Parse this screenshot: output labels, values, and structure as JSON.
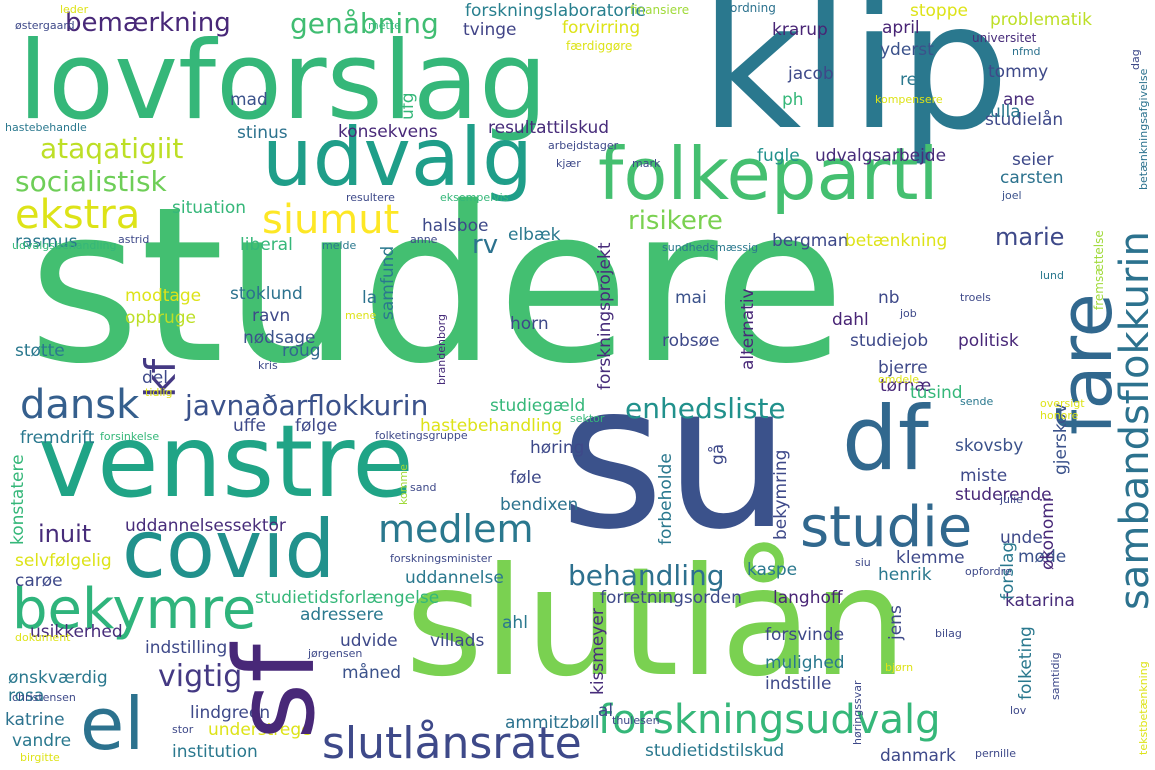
{
  "words": {
    "studere": "studere",
    "su": "su",
    "slutlan": "slutlån",
    "klip": "klip",
    "lovforslag": "lovforslag",
    "venstre": "venstre",
    "covid": "covid",
    "sf": "sf",
    "udvalg": "udvalg",
    "folkeparti": "folkeparti",
    "df": "df",
    "fare": "fare",
    "bekymre": "bekymre",
    "el": "el",
    "studie": "studie",
    "samfundsflokkurin": "sambandsflokkurin",
    "forskningsudvalg": "forskningsudvalg",
    "slutlansrate": "slutlånsrate",
    "dansk": "dansk",
    "medlem": "medlem",
    "ekstra": "ekstra",
    "socialistisk": "socialistisk",
    "siumut": "siumut",
    "ataqatigiit": "ataqatigiit",
    "genabning": "genåbning",
    "bemaerkning": "bemærkning",
    "javnadarflokkurin": "javnaðarflokkurin",
    "enhedsliste": "enhedsliste",
    "kf": "kf",
    "behandling": "behandling",
    "vigtig": "vigtig",
    "inuit": "inuit",
    "marie": "marie",
    "rv": "rv",
    "risikere": "risikere",
    "forskningslaboratorie": "forskningslaboratorie",
    "forvirring": "forvirring",
    "tvinge": "tvinge",
    "fardiggore": "færdiggøre",
    "finansiere": "finansiere",
    "ordning": "ordning",
    "april": "april",
    "stoppe": "stoppe",
    "problematik": "problematik",
    "universitet": "universitet",
    "nfmd": "nfmd",
    "krarup": "krarup",
    "yderst": "yderst",
    "jacob": "jacob",
    "tommy": "tommy",
    "ret": "ret",
    "ane": "ane",
    "ph": "ph",
    "studielan": "studielån",
    "ulla": "ulla",
    "resultattilskud": "resultattilskud",
    "konsekvens": "konsekvens",
    "stinus": "stinus",
    "mad": "mad",
    "ufg": "ufg",
    "fugle": "fugle",
    "udvalgsarbejde": "udvalgsarbejde",
    "seier": "seier",
    "carsten": "carsten",
    "joel": "joel",
    "situation": "situation",
    "rasmus": "rasmus",
    "halsboe": "halsboe",
    "elbaek": "elbæk",
    "liberal": "liberal",
    "bergman": "bergman",
    "betaenkning": "betænkning",
    "modtage": "modtage",
    "opbruge": "opbruge",
    "stoklund": "stoklund",
    "ravn": "ravn",
    "la": "la",
    "samfund": "samfund",
    "mai": "mai",
    "nb": "nb",
    "dahl": "dahl",
    "horn": "horn",
    "robsoe": "robsøe",
    "politisk": "politisk",
    "studiejob": "studiejob",
    "nodsage": "nødsage",
    "roug": "roug",
    "stotte": "støtte",
    "del": "del",
    "bjerre": "bjerre",
    "tornae": "tørnæ",
    "tusind": "tusind",
    "studiegaeld": "studiegæld",
    "hastebehandling": "hastebehandling",
    "uffe": "uffe",
    "folge": "følge",
    "fremdrift": "fremdrift",
    "horing": "høring",
    "skovsby": "skovsby",
    "gjerskov": "gjerskov",
    "miste": "miste",
    "studerende": "studerende",
    "bendixen": "bendixen",
    "fole": "føle",
    "ga": "gå",
    "bekymring": "bekymring",
    "forbeholde": "forbeholde",
    "konstatere": "konstatere",
    "uddannelsessektor": "uddannelsessektor",
    "uddannelse": "uddannelse",
    "selvfolgelig": "selvfølgelig",
    "caroe": "carøe",
    "studietidsforlaengelse": "studietidsforlængelse",
    "kaspe": "kaspe",
    "henrik": "henrik",
    "forslag": "forslag",
    "okonomi": "økonomi",
    "unde": "unde",
    "mode": "møde",
    "klemme": "klemme",
    "katarina": "katarina",
    "forretningsorden": "forretningsorden",
    "langhoff": "langhoff",
    "adressere": "adressere",
    "ahl": "ahl",
    "usikkerhed": "usikkerhed",
    "indstilling": "indstilling",
    "udvide": "udvide",
    "villads": "villads",
    "forsvinde": "forsvinde",
    "mulighed": "mulighed",
    "jens": "jens",
    "folketing": "folketing",
    "onskvaerdig": "ønskværdig",
    "rosa": "rosa",
    "maned": "måned",
    "indstille": "indstille",
    "kissmeyer": "kissmeyer",
    "katrine": "katrine",
    "lindgreen": "lindgreen",
    "understrege": "understrege",
    "ammitzboll": "ammitzbøll",
    "al": "al",
    "vandre": "vandre",
    "institution": "institution",
    "studietidstilskud": "studietidstilskud",
    "danmark": "danmark",
    "forskningsprojekt": "forskningsprojekt",
    "alternativ": "alternativ",
    "leder": "leder",
    "ostergaard": "østergaard",
    "mette": "mette",
    "hastebehandle": "hastebehandle",
    "arbejdstager": "arbejdstager",
    "eksempelvis": "eksempelvis",
    "resultere": "resultere",
    "udvalgsbehandling": "udvalgsbehandling",
    "astrid": "astrid",
    "melde": "melde",
    "anne": "anne",
    "kjaer": "kjær",
    "mark": "mark",
    "sundhedsmaessig": "sundhedsmæssig",
    "kompensere": "kompensere",
    "lund": "lund",
    "troels": "troels",
    "fremsaettelse": "fremsættelse",
    "betaenkningsafgivelse": "betænkningsafgivelse",
    "dag": "dag",
    "mene": "mene",
    "job": "job",
    "kris": "kris",
    "tidlig": "tidlig",
    "brandenborg": "brandenborg",
    "omdele": "omdele",
    "sende": "sende",
    "oversigt": "oversigt",
    "honore": "honore",
    "forsinkelse": "forsinkelse",
    "folketingsgruppe": "folketingsgruppe",
    "sektor": "sektor",
    "sand": "sand",
    "komme": "komme",
    "julie": "julie",
    "forskningsminister": "forskningsminister",
    "siu": "siu",
    "opfordre": "opfordre",
    "dokument": "dokument",
    "bilag": "bilag",
    "jorgensen": "jørgensen",
    "bjorn": "bjørn",
    "christensen": "christensen",
    "horingssvar": "høringssvar",
    "samtidig": "samtidig",
    "thulesen": "thulesen",
    "stor": "stor",
    "birgitte": "birgitte",
    "pernille": "pernille",
    "tekstbetaenkning": "tekstbetænkning",
    "lov": "lov"
  }
}
